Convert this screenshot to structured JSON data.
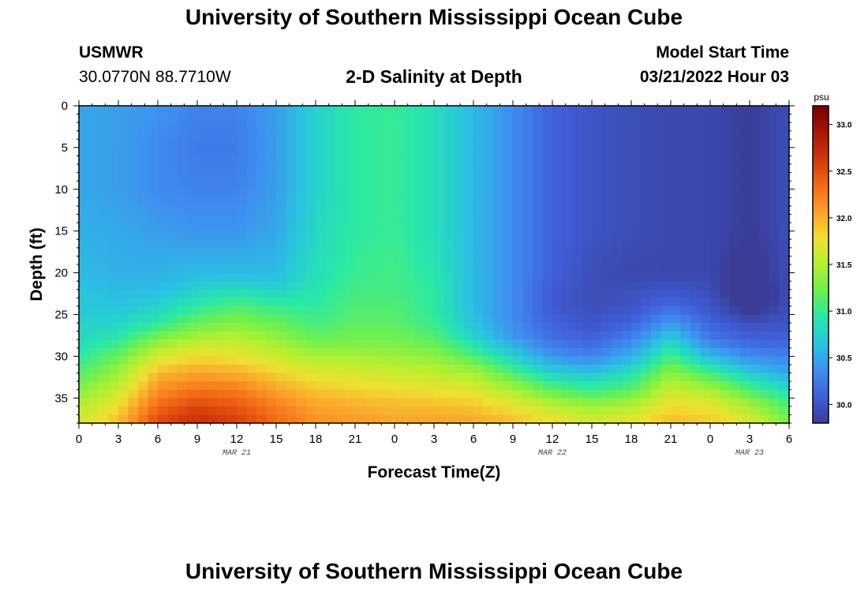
{
  "page": {
    "title": "University of Southern Mississippi Ocean Cube",
    "title_repeat": "University of Southern Mississippi Ocean Cube",
    "station_id": "USMWR",
    "station_coords": "30.0770N  88.7710W",
    "subtitle": "2-D Salinity at Depth",
    "model_start_label": "Model Start Time",
    "model_start_value": "03/21/2022 Hour 03"
  },
  "chart_data": {
    "type": "heatmap",
    "title": "2-D Salinity at Depth",
    "xlabel": "Forecast Time(Z)",
    "ylabel": "Depth (ft)",
    "units": "psu",
    "x_range_hours": [
      0,
      54
    ],
    "x_tick_labels": [
      "0",
      "3",
      "6",
      "9",
      "12",
      "15",
      "18",
      "21",
      "0",
      "3",
      "6",
      "9",
      "12",
      "15",
      "18",
      "21",
      "0",
      "3",
      "6"
    ],
    "date_labels": [
      {
        "label": "MAR 21",
        "hour": 12
      },
      {
        "label": "MAR 22",
        "hour": 36
      },
      {
        "label": "MAR 23",
        "hour": 51
      }
    ],
    "y_range_ft": [
      0,
      38
    ],
    "y_tick_labels": [
      "0",
      "5",
      "10",
      "15",
      "20",
      "25",
      "30",
      "35"
    ],
    "colorbar": {
      "label": "psu",
      "min": 29.8,
      "max": 33.2,
      "tick_labels": [
        "30.0",
        "30.5",
        "31.0",
        "31.5",
        "32.0",
        "32.5",
        "33.0"
      ],
      "colors": [
        "#3a3c96",
        "#3f5fd9",
        "#3f8ef0",
        "#28c4e0",
        "#28e8a8",
        "#6cf050",
        "#b4f030",
        "#f0e030",
        "#fba02a",
        "#f26a14",
        "#d2360a",
        "#a41606",
        "#780000"
      ]
    },
    "depths_ft": [
      0,
      5,
      10,
      15,
      20,
      22,
      24,
      26,
      28,
      30,
      32,
      34,
      36,
      38
    ],
    "hours": [
      0,
      3,
      6,
      9,
      12,
      15,
      18,
      21,
      24,
      27,
      30,
      33,
      36,
      39,
      42,
      45,
      48,
      51,
      54
    ],
    "salinity_psu": [
      [
        30.5,
        30.45,
        30.4,
        30.3,
        30.3,
        30.45,
        30.75,
        30.95,
        31.0,
        30.85,
        30.6,
        30.35,
        30.1,
        30.0,
        29.95,
        29.9,
        29.9,
        29.8,
        29.95
      ],
      [
        30.5,
        30.45,
        30.35,
        30.25,
        30.25,
        30.45,
        30.75,
        30.95,
        31.0,
        30.85,
        30.6,
        30.35,
        30.1,
        30.0,
        29.95,
        29.9,
        29.9,
        29.8,
        29.95
      ],
      [
        30.5,
        30.45,
        30.35,
        30.3,
        30.3,
        30.45,
        30.75,
        30.95,
        31.0,
        30.85,
        30.6,
        30.35,
        30.1,
        30.0,
        29.95,
        29.9,
        29.9,
        29.8,
        29.95
      ],
      [
        30.55,
        30.5,
        30.45,
        30.4,
        30.4,
        30.5,
        30.8,
        30.95,
        31.0,
        30.85,
        30.6,
        30.35,
        30.1,
        30.0,
        29.95,
        29.9,
        29.9,
        29.8,
        29.95
      ],
      [
        30.6,
        30.55,
        30.55,
        30.6,
        30.6,
        30.6,
        30.85,
        31.0,
        31.05,
        30.9,
        30.6,
        30.35,
        30.1,
        29.95,
        29.9,
        29.9,
        29.9,
        29.7,
        29.95
      ],
      [
        30.65,
        30.6,
        30.6,
        30.75,
        30.8,
        30.75,
        30.9,
        31.05,
        31.05,
        30.95,
        30.6,
        30.35,
        30.05,
        29.95,
        29.95,
        30.0,
        29.95,
        29.6,
        29.95
      ],
      [
        30.7,
        30.65,
        30.75,
        30.95,
        31.1,
        31.0,
        30.95,
        31.1,
        31.1,
        30.95,
        30.6,
        30.35,
        30.05,
        29.95,
        30.0,
        30.15,
        30.0,
        29.7,
        29.95
      ],
      [
        30.75,
        30.75,
        30.95,
        31.2,
        31.3,
        31.2,
        31.05,
        31.15,
        31.15,
        31.0,
        30.65,
        30.35,
        30.1,
        30.0,
        30.1,
        30.45,
        30.1,
        29.95,
        30.0
      ],
      [
        30.8,
        30.95,
        31.3,
        31.5,
        31.55,
        31.4,
        31.2,
        31.25,
        31.25,
        31.15,
        30.8,
        30.45,
        30.2,
        30.1,
        30.3,
        30.75,
        30.25,
        30.1,
        30.1
      ],
      [
        30.95,
        31.2,
        31.65,
        31.8,
        31.75,
        31.6,
        31.45,
        31.45,
        31.4,
        31.35,
        31.1,
        30.75,
        30.4,
        30.3,
        30.55,
        31.05,
        30.6,
        30.35,
        30.3
      ],
      [
        31.1,
        31.4,
        31.95,
        32.05,
        32.0,
        31.85,
        31.7,
        31.65,
        31.6,
        31.55,
        31.45,
        31.1,
        30.75,
        30.65,
        30.85,
        31.35,
        31.05,
        30.7,
        30.5
      ],
      [
        31.3,
        31.6,
        32.15,
        32.3,
        32.25,
        32.05,
        31.9,
        31.85,
        31.8,
        31.75,
        31.7,
        31.45,
        31.15,
        31.0,
        31.15,
        31.6,
        31.45,
        31.1,
        30.8
      ],
      [
        31.5,
        31.8,
        32.35,
        32.55,
        32.45,
        32.25,
        32.05,
        32.0,
        31.95,
        31.95,
        31.9,
        31.75,
        31.55,
        31.4,
        31.5,
        31.8,
        31.75,
        31.45,
        31.1
      ],
      [
        31.6,
        31.95,
        32.55,
        32.7,
        32.6,
        32.35,
        32.15,
        32.1,
        32.05,
        32.05,
        32.05,
        31.95,
        31.8,
        31.7,
        31.75,
        31.95,
        31.9,
        31.7,
        31.25
      ]
    ]
  }
}
